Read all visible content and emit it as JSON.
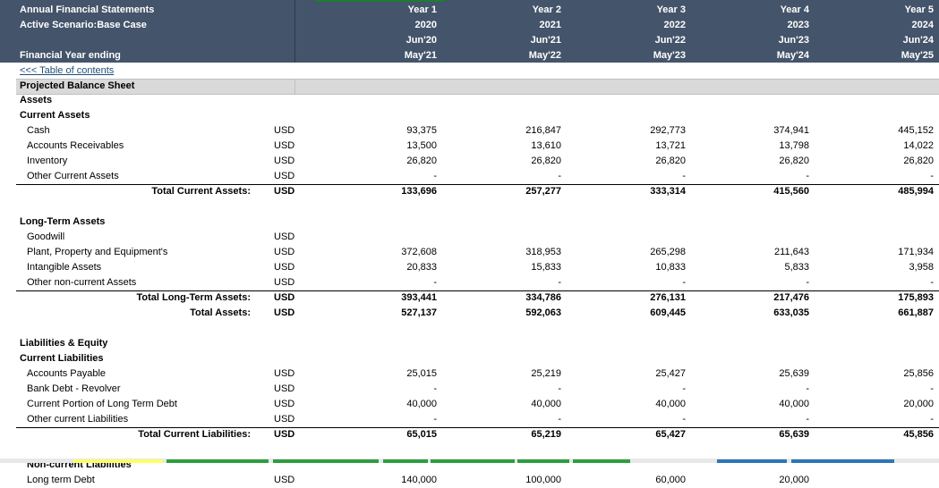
{
  "header": {
    "title": "Annual Financial Statements",
    "scenario": "Active Scenario:Base Case",
    "fy_label": "Financial Year ending",
    "years": [
      {
        "label": "Year 1",
        "year": "2020",
        "start": "Jun'20",
        "end": "May'21"
      },
      {
        "label": "Year 2",
        "year": "2021",
        "start": "Jun'21",
        "end": "May'22"
      },
      {
        "label": "Year 3",
        "year": "2022",
        "start": "Jun'22",
        "end": "May'23"
      },
      {
        "label": "Year 4",
        "year": "2023",
        "start": "Jun'23",
        "end": "May'24"
      },
      {
        "label": "Year 5",
        "year": "2024",
        "start": "Jun'24",
        "end": "May'25"
      }
    ]
  },
  "toc_link": "<<< Table of contents",
  "section_title": "Projected Balance Sheet",
  "rows": [
    {
      "label": "Assets",
      "bold": true
    },
    {
      "label": "Current Assets",
      "bold": true
    },
    {
      "label": "Cash",
      "indent": true,
      "unit": "USD",
      "values": [
        "93,375",
        "216,847",
        "292,773",
        "374,941",
        "445,152"
      ]
    },
    {
      "label": "Accounts Receivables",
      "indent": true,
      "unit": "USD",
      "values": [
        "13,500",
        "13,610",
        "13,721",
        "13,798",
        "14,022"
      ]
    },
    {
      "label": "Inventory",
      "indent": true,
      "unit": "USD",
      "values": [
        "26,820",
        "26,820",
        "26,820",
        "26,820",
        "26,820"
      ]
    },
    {
      "label": "Other Current Assets",
      "indent": true,
      "unit": "USD",
      "values": [
        "-",
        "-",
        "-",
        "-",
        "-"
      ]
    },
    {
      "label": "Total Current Assets:",
      "total": true,
      "unit": "USD",
      "values": [
        "133,696",
        "257,277",
        "333,314",
        "415,560",
        "485,994"
      ]
    },
    {
      "label": "",
      "blank": true
    },
    {
      "label": "Long-Term Assets",
      "bold": true
    },
    {
      "label": "Goodwill",
      "indent": true,
      "unit": "USD",
      "values": [
        "",
        "",
        "",
        "",
        ""
      ]
    },
    {
      "label": "Plant, Property and Equipment's",
      "indent": true,
      "unit": "USD",
      "values": [
        "372,608",
        "318,953",
        "265,298",
        "211,643",
        "171,934"
      ]
    },
    {
      "label": "Intangible Assets",
      "indent": true,
      "unit": "USD",
      "values": [
        "20,833",
        "15,833",
        "10,833",
        "5,833",
        "3,958"
      ]
    },
    {
      "label": "Other non-current Assets",
      "indent": true,
      "unit": "USD",
      "values": [
        "-",
        "-",
        "-",
        "-",
        "-"
      ]
    },
    {
      "label": "Total Long-Term Assets:",
      "total": true,
      "unit": "USD",
      "values": [
        "393,441",
        "334,786",
        "276,131",
        "217,476",
        "175,893"
      ]
    },
    {
      "label": "Total Assets:",
      "total": true,
      "unit": "USD",
      "values": [
        "527,137",
        "592,063",
        "609,445",
        "633,035",
        "661,887"
      ]
    },
    {
      "label": "",
      "blank": true
    },
    {
      "label": "Liabilities & Equity",
      "bold": true
    },
    {
      "label": "Current Liabilities",
      "bold": true
    },
    {
      "label": "Accounts Payable",
      "indent": true,
      "unit": "USD",
      "values": [
        "25,015",
        "25,219",
        "25,427",
        "25,639",
        "25,856"
      ]
    },
    {
      "label": "Bank Debt - Revolver",
      "indent": true,
      "unit": "USD",
      "values": [
        "-",
        "-",
        "-",
        "-",
        "-"
      ]
    },
    {
      "label": "Current Portion of Long Term Debt",
      "indent": true,
      "unit": "USD",
      "values": [
        "40,000",
        "40,000",
        "40,000",
        "40,000",
        "20,000"
      ]
    },
    {
      "label": "Other current Liabilities",
      "indent": true,
      "unit": "USD",
      "values": [
        "-",
        "-",
        "-",
        "-",
        "-"
      ]
    },
    {
      "label": "Total Current Liabilities:",
      "total": true,
      "unit": "USD",
      "values": [
        "65,015",
        "65,219",
        "65,427",
        "65,639",
        "45,856"
      ]
    },
    {
      "label": "",
      "blank": true
    },
    {
      "label": "Non-current Liabilities",
      "bold": true,
      "indent": true
    },
    {
      "label": "Long term Debt",
      "indent": true,
      "unit": "USD",
      "values": [
        "140,000",
        "100,000",
        "60,000",
        "20,000",
        ""
      ]
    }
  ],
  "colors": {
    "header_bg": "#44546a",
    "section_bg": "#d9d9d9",
    "link": "#1f4e79"
  },
  "tabs": [
    {
      "color": "#ffff66"
    },
    {
      "color": "#2e9e3e"
    },
    {
      "color": "#2e9e3e"
    },
    {
      "color": "#2e9e3e"
    },
    {
      "color": "#2e9e3e"
    },
    {
      "color": "#2e9e3e"
    },
    {
      "color": "#2e9e3e"
    },
    {
      "color": "#2e75b6"
    },
    {
      "color": "#2e75b6"
    }
  ]
}
